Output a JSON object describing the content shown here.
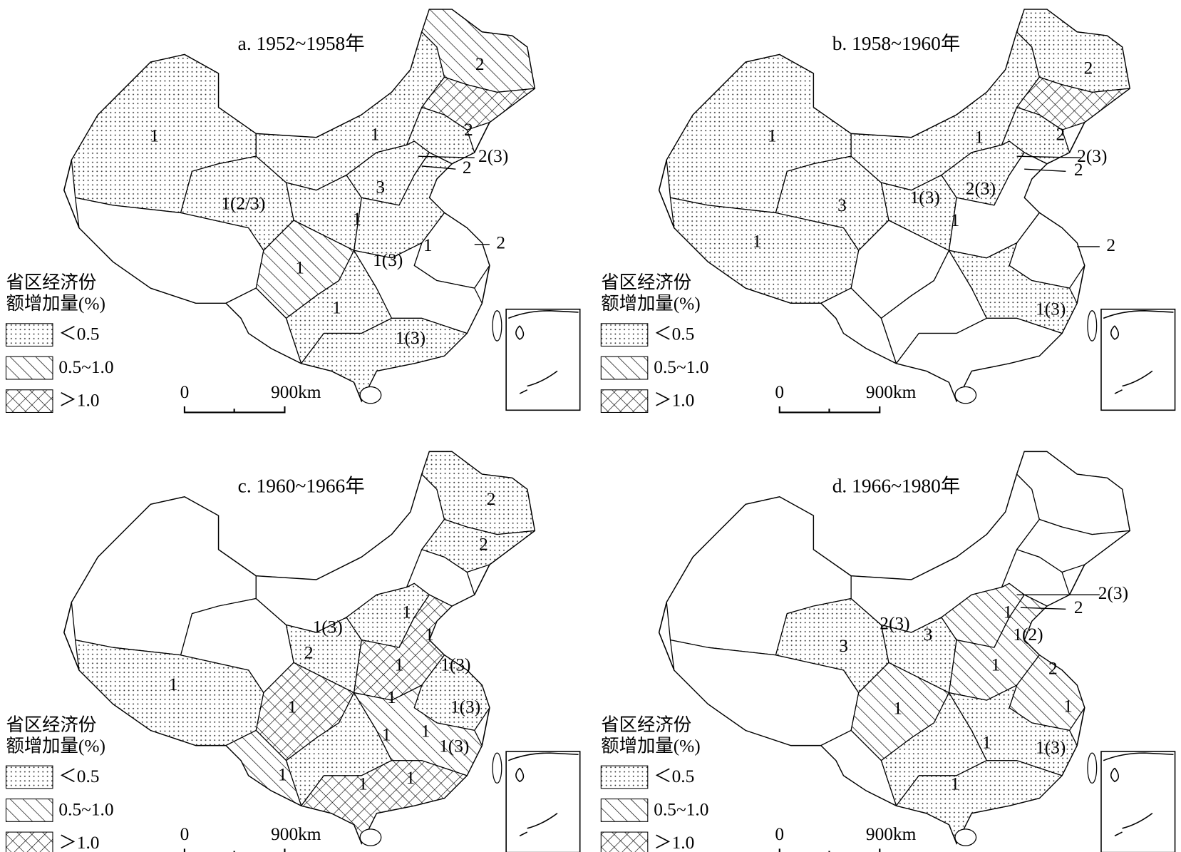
{
  "panels": [
    {
      "title": "a. 1952~1958年",
      "labels": [
        "1",
        "2",
        "1",
        "2",
        "2(3)",
        "2",
        "3",
        "1(2/3)",
        "1",
        "1",
        "2",
        "1",
        "1(3)",
        "1",
        "1(3)"
      ]
    },
    {
      "title": "b. 1958~1960年",
      "labels": [
        "2",
        "2",
        "1",
        "1",
        "2(3)",
        "2",
        "1(3)",
        "2(3)",
        "3",
        "1",
        "1",
        "2",
        "1(3)"
      ]
    },
    {
      "title": "c. 1960~1966年",
      "labels": [
        "2",
        "2",
        "1",
        "1(3)",
        "1",
        "2",
        "1",
        "1(3)",
        "1",
        "1",
        "1(3)",
        "1",
        "1",
        "1",
        "1(3)",
        "1",
        "1",
        "1"
      ]
    },
    {
      "title": "d. 1966~1980年",
      "labels": [
        "2(3)",
        "2",
        "1",
        "1(2)",
        "2(3)",
        "3",
        "3",
        "1",
        "2",
        "1",
        "1",
        "1",
        "1(3)",
        "1"
      ]
    }
  ],
  "legend": {
    "title": [
      "省区经济份",
      "额增加量(%)"
    ],
    "items": [
      "＜0.5",
      "0.5~1.0",
      "＞1.0"
    ]
  },
  "scale": {
    "start": "0",
    "end": "900km"
  }
}
